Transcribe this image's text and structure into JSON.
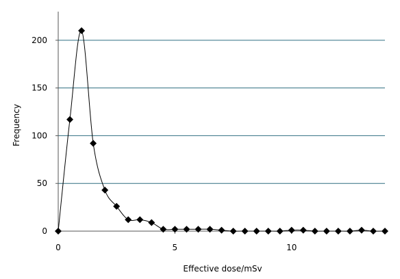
{
  "chart_data": {
    "type": "line",
    "title": "",
    "xlabel": "Effective dose/mSv",
    "ylabel": "Frequency",
    "xlim": [
      0,
      14
    ],
    "ylim": [
      0,
      230
    ],
    "x_ticks": [
      0,
      5,
      10
    ],
    "y_ticks": [
      0,
      50,
      100,
      150,
      200
    ],
    "grid": "horizontal",
    "marker": "diamond",
    "smooth": true,
    "series": [
      {
        "x": [
          0,
          0.5,
          1,
          1.5,
          2,
          2.5,
          3,
          3.5,
          4,
          4.5,
          5,
          5.5,
          6,
          6.5,
          7,
          7.5,
          8,
          8.5,
          9,
          9.5,
          10,
          10.5,
          11,
          11.5,
          12,
          12.5,
          13,
          13.5,
          14
        ],
        "y": [
          0,
          117,
          210,
          92,
          43,
          26,
          12,
          12,
          9,
          2,
          2,
          2,
          2,
          2,
          1,
          0,
          0,
          0,
          0,
          0,
          1,
          1,
          0,
          0,
          0,
          0,
          1,
          0,
          0
        ]
      }
    ],
    "colors": {
      "line": "#000000",
      "marker": "#000000",
      "grid": "#2e6e80"
    }
  }
}
